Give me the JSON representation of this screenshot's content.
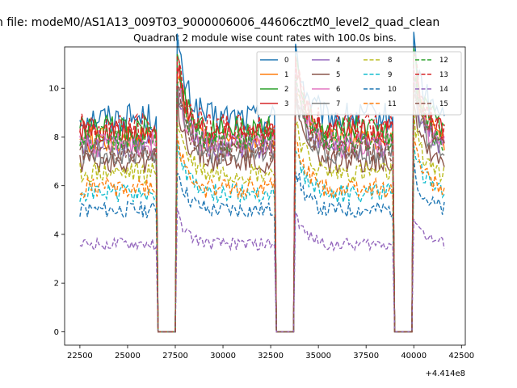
{
  "figure": {
    "suptitle": "n file: modeM0/AS1A13_009T03_9000006006_44606cztM0_level2_quad_clean",
    "title": "Quadrant 2 module wise count rates with 100.0s bins.",
    "offset_text": "+4.414e8"
  },
  "chart_data": {
    "type": "line",
    "title": "Quadrant 2 module wise count rates with 100.0s bins.",
    "xlabel": "",
    "ylabel": "",
    "x_offset": 441400000,
    "xlim": [
      21700,
      42700
    ],
    "ylim": [
      -0.55,
      11.7
    ],
    "xticks": [
      22500,
      25000,
      27500,
      30000,
      32500,
      35000,
      37500,
      40000,
      42500
    ],
    "xtick_labels": [
      "22500",
      "25000",
      "27500",
      "30000",
      "32500",
      "35000",
      "37500",
      "40000",
      "42500"
    ],
    "yticks": [
      0,
      2,
      4,
      6,
      8,
      10
    ],
    "ytick_labels": [
      "0",
      "2",
      "4",
      "6",
      "8",
      "10"
    ],
    "grid": false,
    "legend": "top-right",
    "bin_s": 100,
    "x_start": 22500,
    "x_end": 41600,
    "gaps": [
      [
        26500,
        27600
      ],
      [
        32700,
        33800
      ],
      [
        38900,
        40000
      ]
    ],
    "series": [
      {
        "name": "0",
        "color": "#1f77b4",
        "dash": "solid",
        "level": 8.8
      },
      {
        "name": "1",
        "color": "#ff7f0e",
        "dash": "solid",
        "level": 7.9
      },
      {
        "name": "2",
        "color": "#2ca02c",
        "dash": "solid",
        "level": 8.3
      },
      {
        "name": "3",
        "color": "#d62728",
        "dash": "solid",
        "level": 8.1
      },
      {
        "name": "4",
        "color": "#9467bd",
        "dash": "solid",
        "level": 7.6
      },
      {
        "name": "5",
        "color": "#8c564b",
        "dash": "solid",
        "level": 7.0
      },
      {
        "name": "6",
        "color": "#e377c2",
        "dash": "solid",
        "level": 7.7
      },
      {
        "name": "7",
        "color": "#7f7f7f",
        "dash": "solid",
        "level": 7.4
      },
      {
        "name": "8",
        "color": "#bcbd22",
        "dash": "dashed",
        "level": 6.5
      },
      {
        "name": "9",
        "color": "#17becf",
        "dash": "dashed",
        "level": 5.7
      },
      {
        "name": "10",
        "color": "#1f77b4",
        "dash": "dashed",
        "level": 5.0
      },
      {
        "name": "11",
        "color": "#ff7f0e",
        "dash": "dashed",
        "level": 5.9
      },
      {
        "name": "12",
        "color": "#2ca02c",
        "dash": "dashed",
        "level": 7.9
      },
      {
        "name": "13",
        "color": "#d62728",
        "dash": "dashed",
        "level": 8.4
      },
      {
        "name": "14",
        "color": "#9467bd",
        "dash": "dashed",
        "level": 3.6
      },
      {
        "name": "15",
        "color": "#8c564b",
        "dash": "dashed",
        "level": 7.5
      }
    ]
  }
}
